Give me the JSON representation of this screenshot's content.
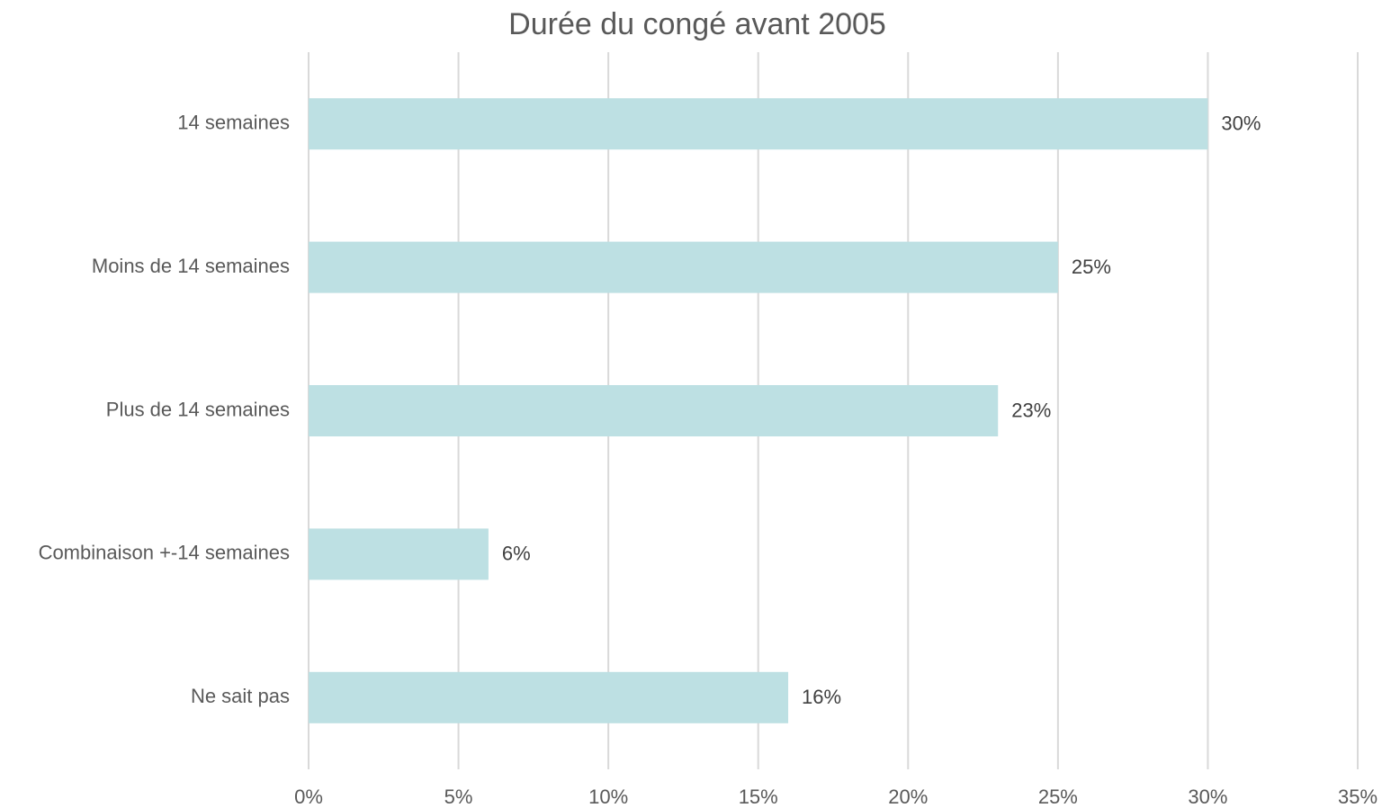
{
  "chart_data": {
    "type": "bar",
    "orientation": "horizontal",
    "title": "Durée du congé avant 2005",
    "categories": [
      "14 semaines",
      "Moins de 14 semaines",
      "Plus de 14 semaines",
      "Combinaison +-14 semaines",
      "Ne sait pas"
    ],
    "values": [
      30,
      25,
      23,
      6,
      16
    ],
    "value_labels": [
      "30%",
      "25%",
      "23%",
      "6%",
      "16%"
    ],
    "color": "#bde0e3",
    "xlim": [
      0,
      35
    ],
    "xticks": [
      {
        "value": 0,
        "label": "0%"
      },
      {
        "value": 5,
        "label": "5%"
      },
      {
        "value": 10,
        "label": "10%"
      },
      {
        "value": 15,
        "label": "15%"
      },
      {
        "value": 20,
        "label": "20%"
      },
      {
        "value": 25,
        "label": "25%"
      },
      {
        "value": 30,
        "label": "30%"
      },
      {
        "value": 35,
        "label": "35%"
      }
    ],
    "grid": true
  }
}
